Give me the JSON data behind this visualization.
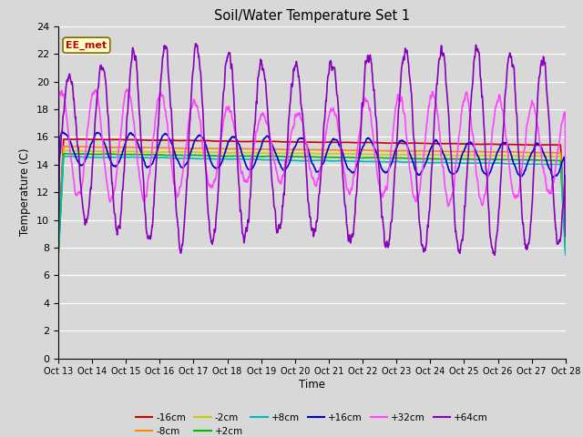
{
  "title": "Soil/Water Temperature Set 1",
  "xlabel": "Time",
  "ylabel": "Temperature (C)",
  "background_color": "#d8d8d8",
  "plot_bg_color": "#d8d8d8",
  "ylim": [
    0,
    24
  ],
  "yticks": [
    0,
    2,
    4,
    6,
    8,
    10,
    12,
    14,
    16,
    18,
    20,
    22,
    24
  ],
  "xtick_labels": [
    "Oct 13",
    "Oct 14",
    "Oct 15",
    "Oct 16",
    "Oct 17",
    "Oct 18",
    "Oct 19",
    "Oct 20",
    "Oct 21",
    "Oct 22",
    "Oct 23",
    "Oct 24",
    "Oct 25",
    "Oct 26",
    "Oct 27",
    "Oct 28"
  ],
  "series": {
    "-16cm": {
      "color": "#cc0000",
      "lw": 1.2
    },
    "-8cm": {
      "color": "#ff8800",
      "lw": 1.2
    },
    "-2cm": {
      "color": "#cccc00",
      "lw": 1.2
    },
    "+2cm": {
      "color": "#00bb00",
      "lw": 1.2
    },
    "+8cm": {
      "color": "#00bbbb",
      "lw": 1.2
    },
    "+16cm": {
      "color": "#0000cc",
      "lw": 1.2
    },
    "+32cm": {
      "color": "#ff44ff",
      "lw": 1.2
    },
    "+64cm": {
      "color": "#8800bb",
      "lw": 1.2
    }
  },
  "annotation_text": "EE_met",
  "annotation_color": "#cc0000",
  "annotation_bg": "#ffffcc"
}
